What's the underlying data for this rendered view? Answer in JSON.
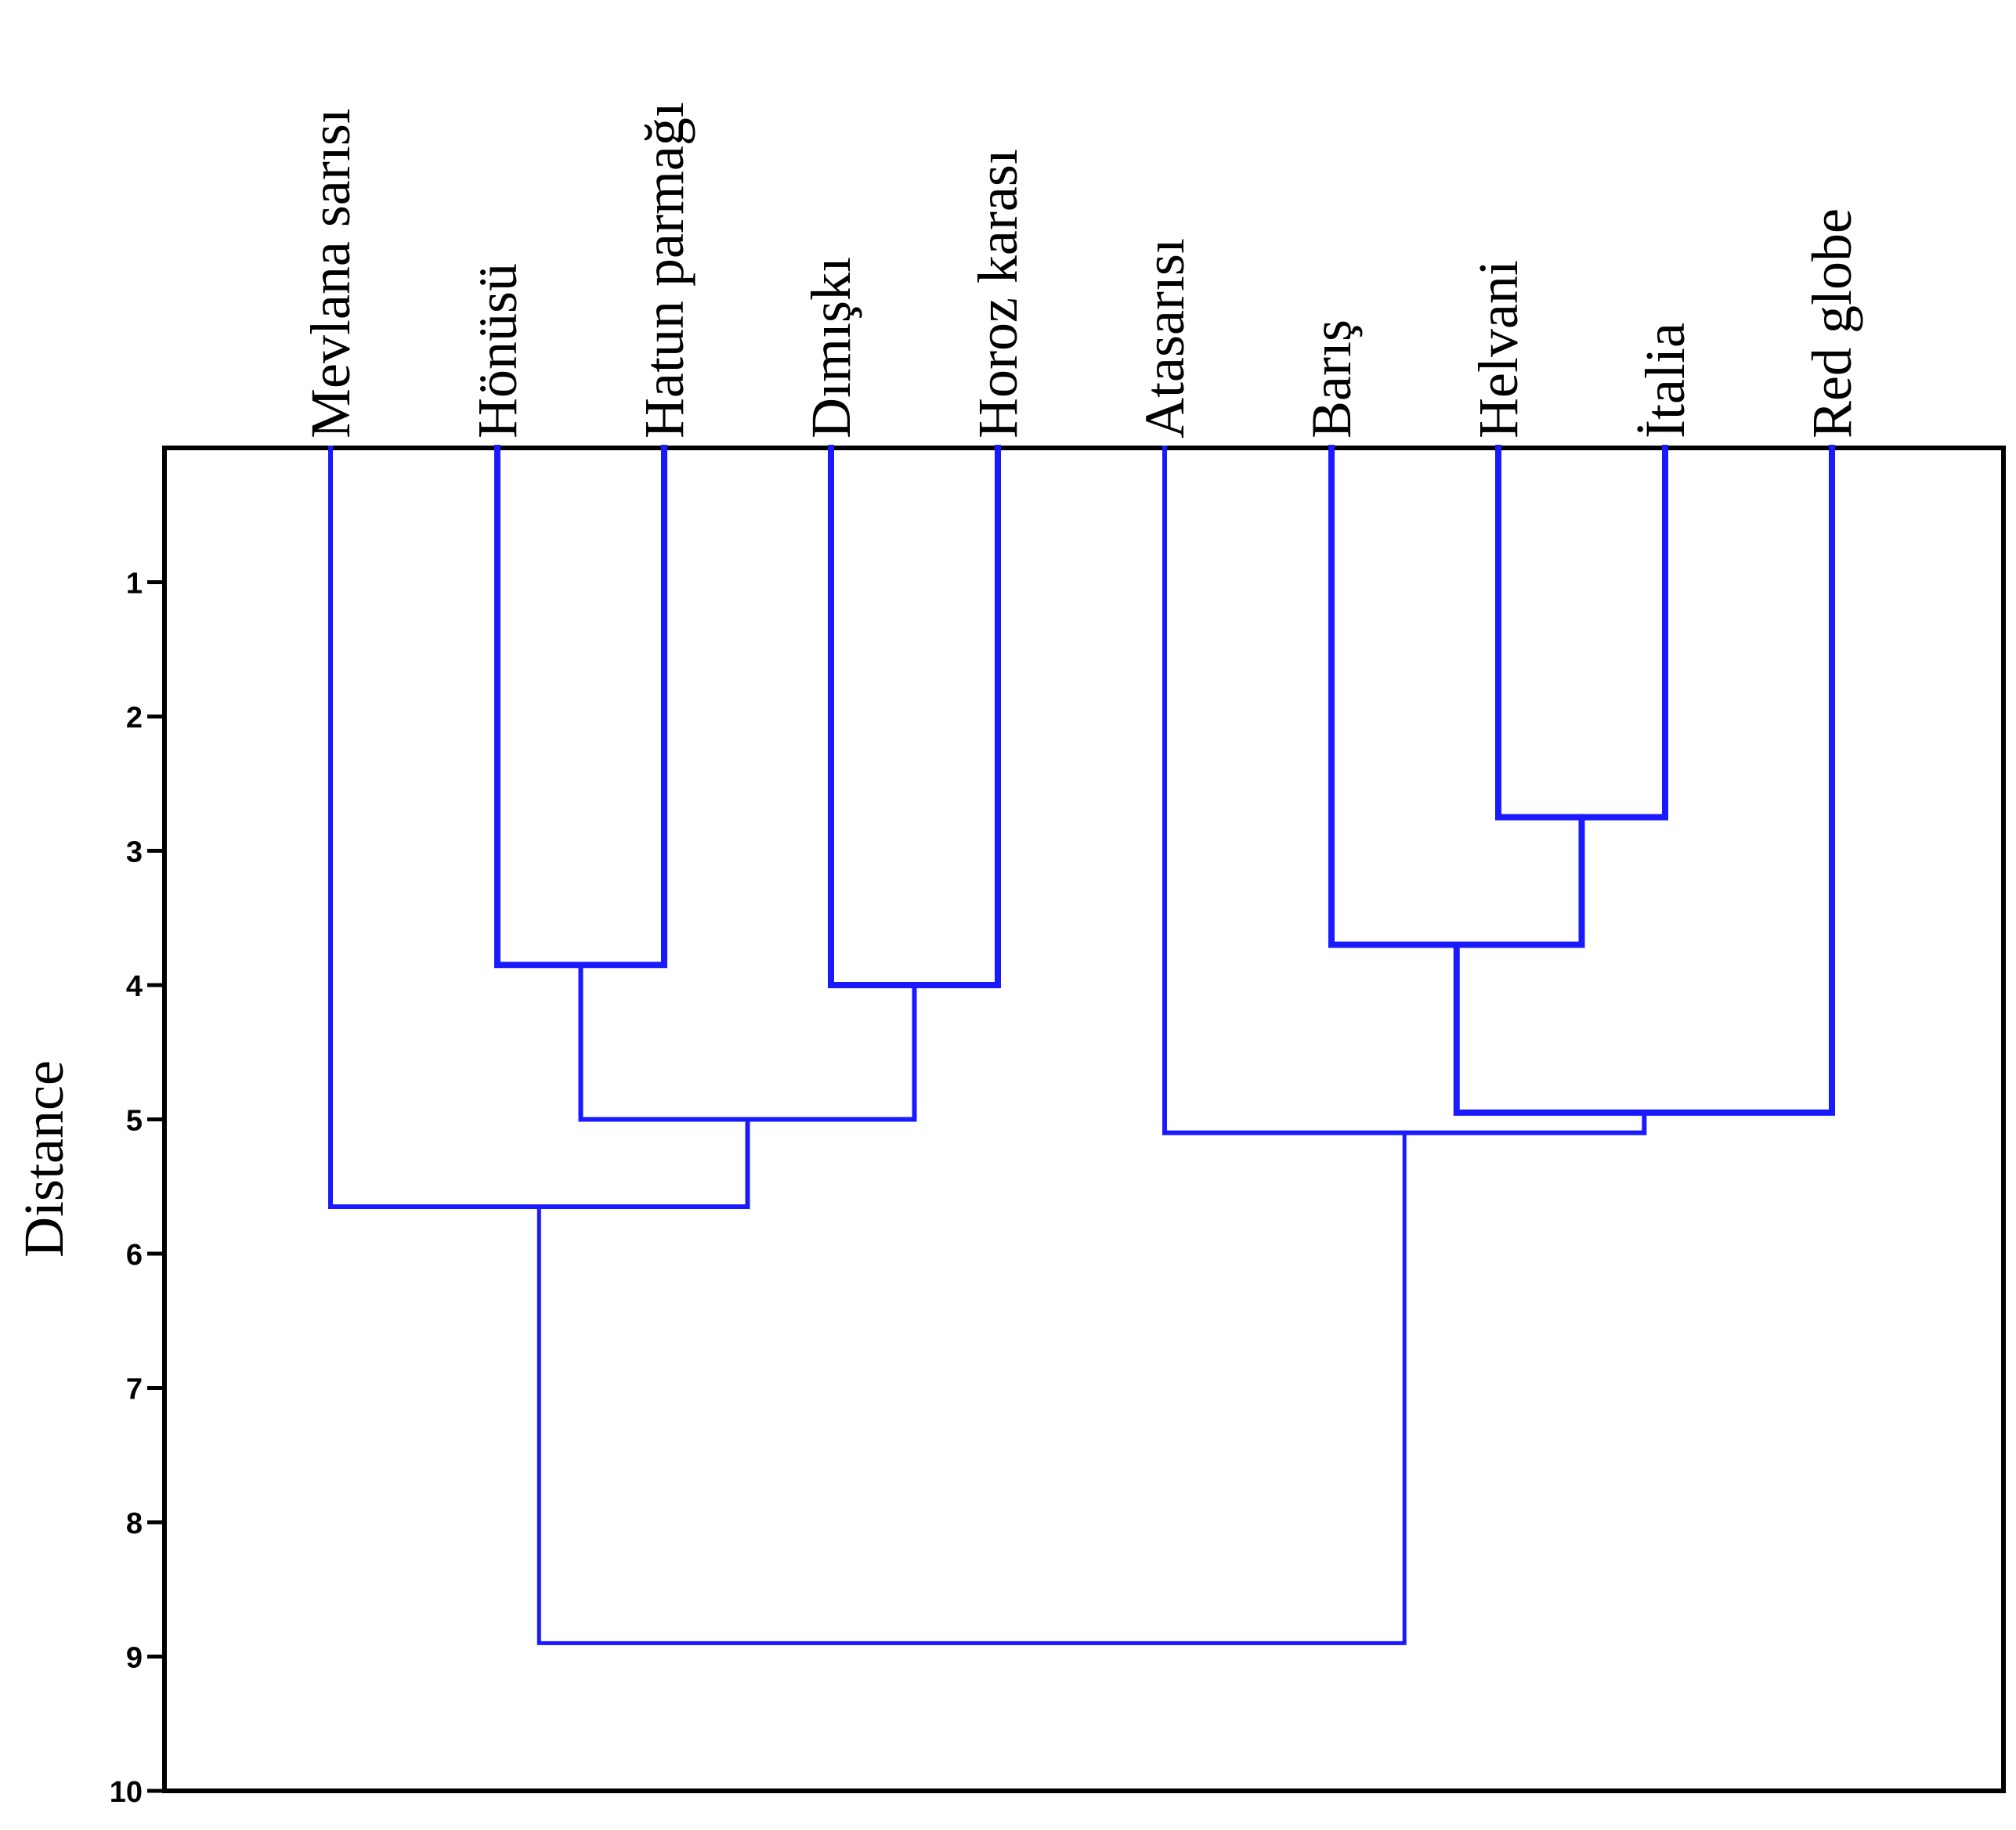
{
  "chart_data": {
    "type": "dendrogram",
    "title": "",
    "ylabel": "Distance",
    "ylim": [
      0,
      10
    ],
    "yticks": [
      "1",
      "2",
      "3",
      "4",
      "5",
      "6",
      "7",
      "8",
      "9",
      "10"
    ],
    "line_color": "#1a1aff",
    "leaves": [
      "Mevlana sarısı",
      "Hönüsü",
      "Hatun parmağı",
      "Dımışkı",
      "Horoz karası",
      "Atasarısı",
      "Barış",
      "Helvani",
      "İtalia",
      "Red globe"
    ],
    "merges": [
      {
        "left": "L:Helvani",
        "right": "L:İtalia",
        "height": 2.75
      },
      {
        "left": "L:Barış",
        "right": "M:0",
        "height": 3.7
      },
      {
        "left": "L:Hönüsü",
        "right": "L:Hatun parmağı",
        "height": 3.85
      },
      {
        "left": "L:Dımışkı",
        "right": "L:Horoz karası",
        "height": 4.0
      },
      {
        "left": "M:1",
        "right": "L:Red globe",
        "height": 4.95
      },
      {
        "left": "M:2",
        "right": "M:3",
        "height": 5.0
      },
      {
        "left": "L:Atasarısı",
        "right": "M:4",
        "height": 5.1
      },
      {
        "left": "L:Mevlana sarısı",
        "right": "M:5",
        "height": 5.65
      },
      {
        "left": "M:7",
        "right": "M:6",
        "height": 8.9
      }
    ]
  }
}
